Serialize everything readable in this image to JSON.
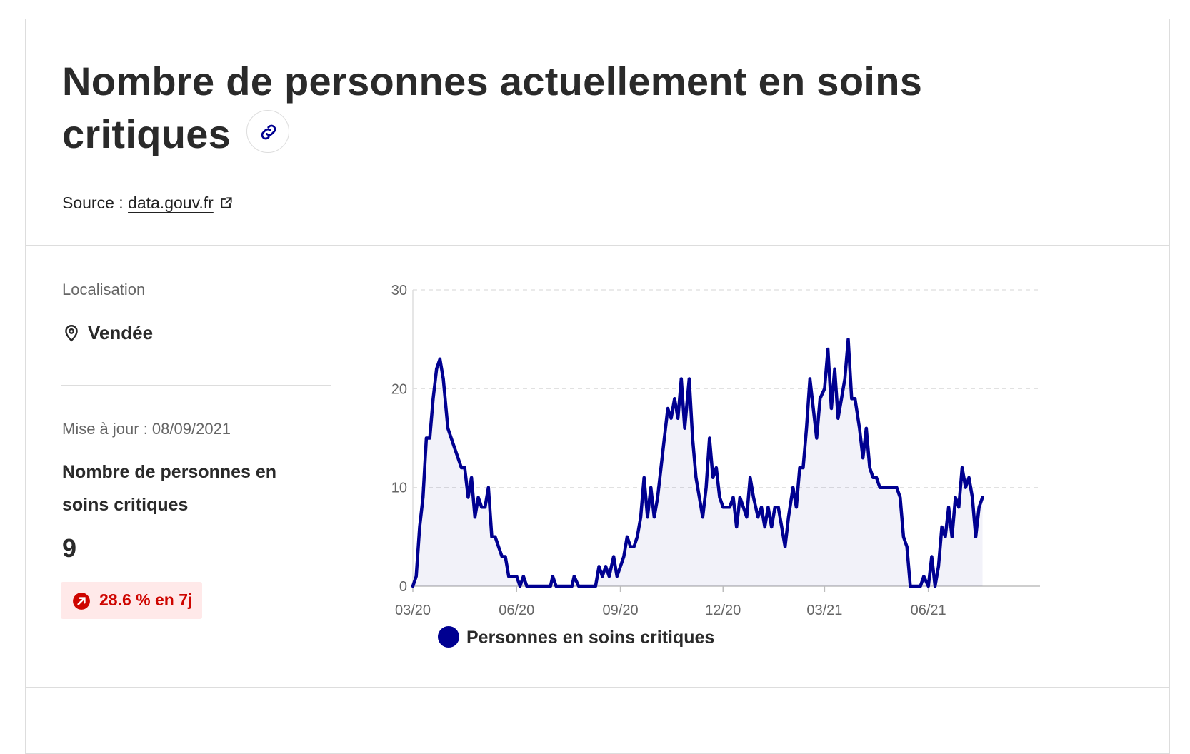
{
  "header": {
    "title": "Nombre de personnes actuellement en soins critiques",
    "source_prefix": "Source : ",
    "source_link": "data.gouv.fr"
  },
  "location": {
    "label": "Localisation",
    "value": "Vendée"
  },
  "update_text": "Mise à jour : 08/09/2021",
  "metric": {
    "name": "Nombre de personnes en soins critiques",
    "value": "9",
    "change": "28.6 % en 7j"
  },
  "legend": {
    "label": "Personnes en soins critiques"
  },
  "colors": {
    "series": "#000091",
    "badge_bg": "#ffe9e9",
    "badge_text": "#ce0500"
  },
  "icons": {
    "link": "link-icon",
    "external": "external-link-icon",
    "location": "map-pin-icon",
    "trend": "arrow-up-right-icon"
  },
  "chart_data": {
    "type": "area",
    "ylim": [
      0,
      30
    ],
    "yticks": [
      0,
      10,
      20,
      30
    ],
    "x_tick_labels": [
      "03/20",
      "06/20",
      "09/20",
      "12/20",
      "03/21",
      "06/21"
    ],
    "x_tick_dates": [
      "2020-03-01",
      "2020-06-01",
      "2020-09-01",
      "2020-12-01",
      "2021-03-01",
      "2021-06-01"
    ],
    "xlim": [
      "2020-03-01",
      "2021-09-08"
    ],
    "grid": true,
    "legend_position": "bottom",
    "series": [
      {
        "name": "Personnes en soins critiques",
        "points": [
          [
            "2020-03-01",
            0
          ],
          [
            "2020-03-04",
            1
          ],
          [
            "2020-03-07",
            6
          ],
          [
            "2020-03-10",
            9
          ],
          [
            "2020-03-13",
            15
          ],
          [
            "2020-03-16",
            15
          ],
          [
            "2020-03-19",
            19
          ],
          [
            "2020-03-22",
            22
          ],
          [
            "2020-03-25",
            23
          ],
          [
            "2020-03-28",
            21
          ],
          [
            "2020-04-01",
            16
          ],
          [
            "2020-04-04",
            15
          ],
          [
            "2020-04-07",
            14
          ],
          [
            "2020-04-10",
            13
          ],
          [
            "2020-04-13",
            12
          ],
          [
            "2020-04-16",
            12
          ],
          [
            "2020-04-19",
            9
          ],
          [
            "2020-04-22",
            11
          ],
          [
            "2020-04-25",
            7
          ],
          [
            "2020-04-28",
            9
          ],
          [
            "2020-05-01",
            8
          ],
          [
            "2020-05-04",
            8
          ],
          [
            "2020-05-07",
            10
          ],
          [
            "2020-05-10",
            5
          ],
          [
            "2020-05-13",
            5
          ],
          [
            "2020-05-16",
            4
          ],
          [
            "2020-05-19",
            3
          ],
          [
            "2020-05-22",
            3
          ],
          [
            "2020-05-25",
            1
          ],
          [
            "2020-05-28",
            1
          ],
          [
            "2020-06-01",
            1
          ],
          [
            "2020-06-04",
            0
          ],
          [
            "2020-06-07",
            1
          ],
          [
            "2020-06-10",
            0
          ],
          [
            "2020-06-20",
            0
          ],
          [
            "2020-07-01",
            0
          ],
          [
            "2020-07-03",
            1
          ],
          [
            "2020-07-06",
            0
          ],
          [
            "2020-07-20",
            0
          ],
          [
            "2020-07-22",
            1
          ],
          [
            "2020-07-26",
            0
          ],
          [
            "2020-08-10",
            0
          ],
          [
            "2020-08-13",
            2
          ],
          [
            "2020-08-16",
            1
          ],
          [
            "2020-08-19",
            2
          ],
          [
            "2020-08-22",
            1
          ],
          [
            "2020-08-26",
            3
          ],
          [
            "2020-08-29",
            1
          ],
          [
            "2020-09-01",
            2
          ],
          [
            "2020-09-04",
            3
          ],
          [
            "2020-09-07",
            5
          ],
          [
            "2020-09-10",
            4
          ],
          [
            "2020-09-13",
            4
          ],
          [
            "2020-09-16",
            5
          ],
          [
            "2020-09-19",
            7
          ],
          [
            "2020-09-22",
            11
          ],
          [
            "2020-09-25",
            7
          ],
          [
            "2020-09-28",
            10
          ],
          [
            "2020-10-01",
            7
          ],
          [
            "2020-10-04",
            9
          ],
          [
            "2020-10-07",
            12
          ],
          [
            "2020-10-10",
            15
          ],
          [
            "2020-10-13",
            18
          ],
          [
            "2020-10-16",
            17
          ],
          [
            "2020-10-19",
            19
          ],
          [
            "2020-10-22",
            17
          ],
          [
            "2020-10-25",
            21
          ],
          [
            "2020-10-28",
            16
          ],
          [
            "2020-11-01",
            21
          ],
          [
            "2020-11-04",
            15
          ],
          [
            "2020-11-07",
            11
          ],
          [
            "2020-11-10",
            9
          ],
          [
            "2020-11-13",
            7
          ],
          [
            "2020-11-16",
            10
          ],
          [
            "2020-11-19",
            15
          ],
          [
            "2020-11-22",
            11
          ],
          [
            "2020-11-25",
            12
          ],
          [
            "2020-11-28",
            9
          ],
          [
            "2020-12-01",
            8
          ],
          [
            "2020-12-04",
            8
          ],
          [
            "2020-12-07",
            8
          ],
          [
            "2020-12-10",
            9
          ],
          [
            "2020-12-13",
            6
          ],
          [
            "2020-12-16",
            9
          ],
          [
            "2020-12-19",
            8
          ],
          [
            "2020-12-22",
            7
          ],
          [
            "2020-12-25",
            11
          ],
          [
            "2020-12-28",
            9
          ],
          [
            "2021-01-01",
            7
          ],
          [
            "2021-01-04",
            8
          ],
          [
            "2021-01-07",
            6
          ],
          [
            "2021-01-10",
            8
          ],
          [
            "2021-01-13",
            6
          ],
          [
            "2021-01-16",
            8
          ],
          [
            "2021-01-19",
            8
          ],
          [
            "2021-01-22",
            6
          ],
          [
            "2021-01-25",
            4
          ],
          [
            "2021-01-28",
            7
          ],
          [
            "2021-02-01",
            10
          ],
          [
            "2021-02-04",
            8
          ],
          [
            "2021-02-07",
            12
          ],
          [
            "2021-02-10",
            12
          ],
          [
            "2021-02-13",
            16
          ],
          [
            "2021-02-16",
            21
          ],
          [
            "2021-02-19",
            18
          ],
          [
            "2021-02-22",
            15
          ],
          [
            "2021-02-25",
            19
          ],
          [
            "2021-03-01",
            20
          ],
          [
            "2021-03-04",
            24
          ],
          [
            "2021-03-07",
            18
          ],
          [
            "2021-03-10",
            22
          ],
          [
            "2021-03-13",
            17
          ],
          [
            "2021-03-16",
            19
          ],
          [
            "2021-03-19",
            21
          ],
          [
            "2021-03-22",
            25
          ],
          [
            "2021-03-25",
            19
          ],
          [
            "2021-03-28",
            19
          ],
          [
            "2021-04-01",
            16
          ],
          [
            "2021-04-04",
            13
          ],
          [
            "2021-04-07",
            16
          ],
          [
            "2021-04-10",
            12
          ],
          [
            "2021-04-13",
            11
          ],
          [
            "2021-04-16",
            11
          ],
          [
            "2021-04-19",
            10
          ],
          [
            "2021-04-22",
            10
          ],
          [
            "2021-04-25",
            10
          ],
          [
            "2021-04-28",
            10
          ],
          [
            "2021-05-01",
            10
          ],
          [
            "2021-05-04",
            10
          ],
          [
            "2021-05-07",
            9
          ],
          [
            "2021-05-10",
            5
          ],
          [
            "2021-05-13",
            4
          ],
          [
            "2021-05-16",
            0
          ],
          [
            "2021-05-19",
            0
          ],
          [
            "2021-05-25",
            0
          ],
          [
            "2021-05-28",
            1
          ],
          [
            "2021-06-01",
            0
          ],
          [
            "2021-06-04",
            3
          ],
          [
            "2021-06-07",
            0
          ],
          [
            "2021-06-10",
            2
          ],
          [
            "2021-06-13",
            6
          ],
          [
            "2021-06-16",
            5
          ],
          [
            "2021-06-19",
            8
          ],
          [
            "2021-06-22",
            5
          ],
          [
            "2021-06-25",
            9
          ],
          [
            "2021-06-28",
            8
          ],
          [
            "2021-07-01",
            12
          ],
          [
            "2021-07-04",
            10
          ],
          [
            "2021-07-07",
            11
          ],
          [
            "2021-07-10",
            9
          ],
          [
            "2021-07-13",
            5
          ],
          [
            "2021-07-16",
            8
          ],
          [
            "2021-07-19",
            9
          ]
        ]
      }
    ]
  }
}
